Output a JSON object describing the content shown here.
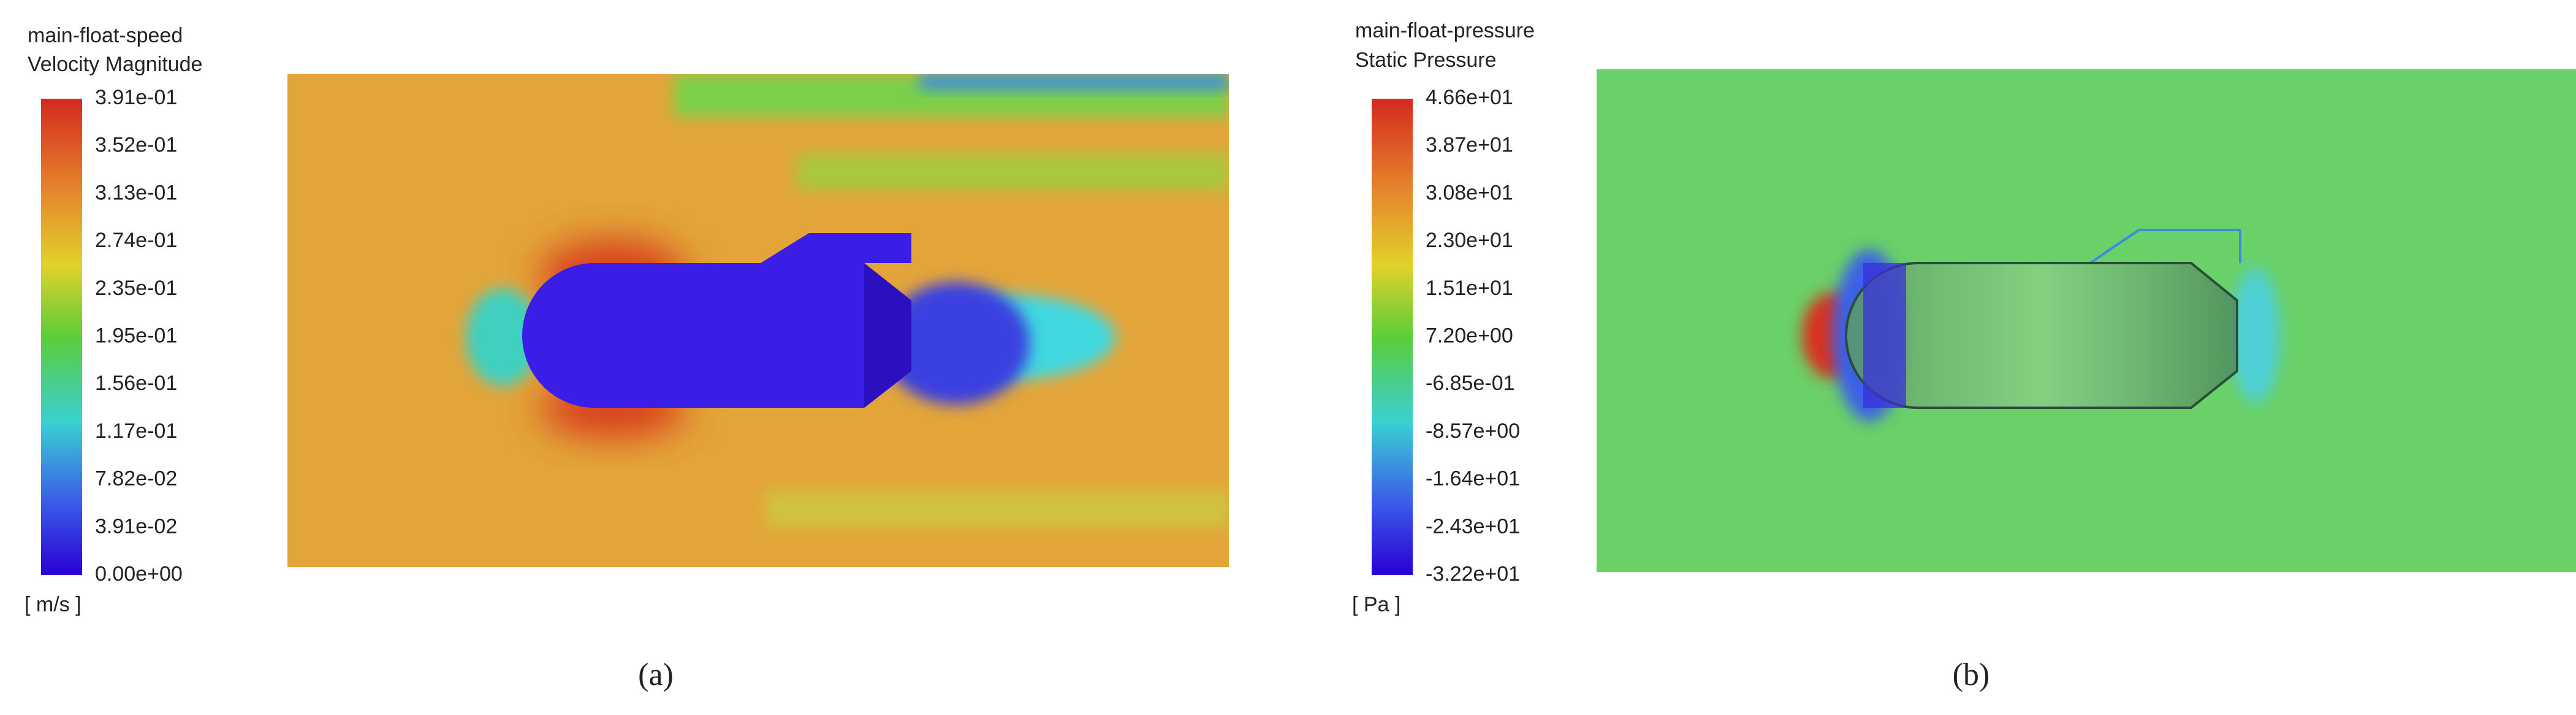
{
  "panels": [
    {
      "legend": {
        "title": "main-float-speed",
        "subtitle": "Velocity Magnitude",
        "ticks": [
          "3.91e-01",
          "3.52e-01",
          "3.13e-01",
          "2.74e-01",
          "2.35e-01",
          "1.95e-01",
          "1.56e-01",
          "1.17e-01",
          "7.82e-02",
          "3.91e-02",
          "0.00e+00"
        ],
        "unit": "[ m/s ]"
      },
      "caption": "(a)"
    },
    {
      "legend": {
        "title": "main-float-pressure",
        "subtitle": "Static Pressure",
        "ticks": [
          "4.66e+01",
          "3.87e+01",
          "3.08e+01",
          "2.30e+01",
          "1.51e+01",
          "7.20e+00",
          "-6.85e-01",
          "-8.57e+00",
          "-1.64e+01",
          "-2.43e+01",
          "-3.22e+01"
        ],
        "unit": "[ Pa ]"
      },
      "caption": "(b)"
    }
  ]
}
